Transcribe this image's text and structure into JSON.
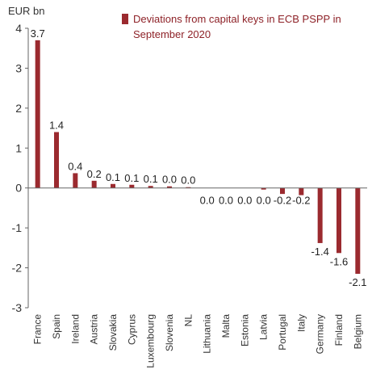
{
  "chart_data": {
    "type": "bar",
    "unit_label": "EUR bn",
    "categories": [
      "France",
      "Spain",
      "Ireland",
      "Austria",
      "Slovakia",
      "Cyprus",
      "Luxembourg",
      "Slovenia",
      "NL",
      "Lithuania",
      "Malta",
      "Estonia",
      "Latvia",
      "Portugal",
      "Italy",
      "Germany",
      "Finland",
      "Belgium"
    ],
    "series": [
      {
        "name": "Deviations from capital keys in ECB PSPP in September 2020",
        "color": "#9b2a2f",
        "values": [
          3.7,
          1.4,
          0.37,
          0.18,
          0.1,
          0.08,
          0.05,
          0.04,
          0.02,
          0.0,
          0.0,
          0.0,
          -0.04,
          -0.15,
          -0.18,
          -1.38,
          -1.63,
          -2.15
        ],
        "data_labels": [
          "3.7",
          "1.4",
          "0.4",
          "0.2",
          "0.1",
          "0.1",
          "0.1",
          "0.0",
          "0.0",
          "0.0",
          "0.0",
          "0.0",
          "0.0",
          "-0.2",
          "-0.2",
          "-1.4",
          "-1.6",
          "-2.1"
        ]
      }
    ],
    "legend": {
      "position": "top-right",
      "lines": [
        "Deviations from capital keys in ECB PSPP in",
        "September 2020"
      ]
    },
    "y_ticks": [
      4,
      3,
      2,
      1,
      0,
      -1,
      -2,
      -3
    ],
    "ylim": [
      -3,
      4
    ],
    "grid": false
  }
}
